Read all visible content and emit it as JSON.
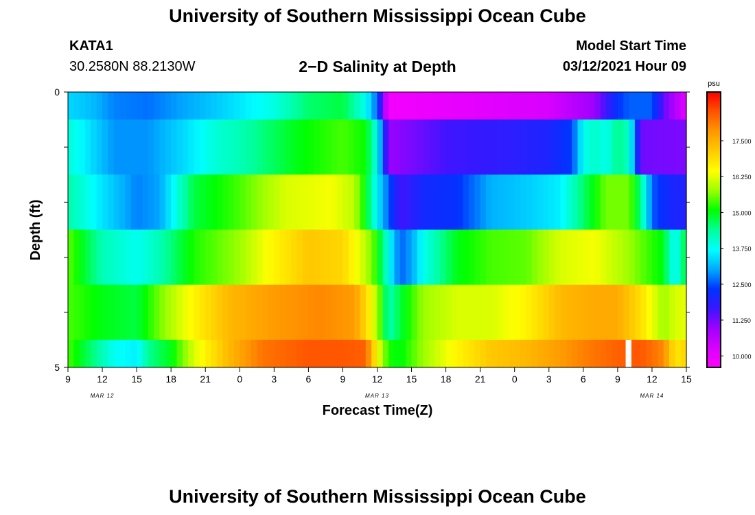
{
  "page": {
    "title_top": "University of Southern Mississippi Ocean Cube",
    "title_bottom": "University of Southern Mississippi Ocean Cube",
    "station_id": "KATA1",
    "station_coords": "30.2580N 88.2130W",
    "chart_title": "2−D Salinity at Depth",
    "model_start_label": "Model Start Time",
    "model_start_value": "03/12/2021 Hour 09"
  },
  "chart_data": {
    "type": "heatmap",
    "title": "2−D Salinity at Depth",
    "xlabel": "Forecast Time(Z)",
    "ylabel": "Depth (ft)",
    "x_start_hour_label": "9",
    "x_tick_labels": [
      "9",
      "12",
      "15",
      "18",
      "21",
      "0",
      "3",
      "6",
      "9",
      "12",
      "15",
      "18",
      "21",
      "0",
      "3",
      "6",
      "9",
      "12",
      "15"
    ],
    "x_hour_range": [
      9,
      63
    ],
    "date_labels": [
      {
        "label": "MAR 12",
        "hour": 12
      },
      {
        "label": "MAR 13",
        "hour": 36
      },
      {
        "label": "MAR 14",
        "hour": 60
      }
    ],
    "y_tick_labels": [
      "0",
      "5"
    ],
    "ylim": [
      0,
      5
    ],
    "depth_layers": [
      "0-0.5",
      "0.5-1.5",
      "1.5-2.5",
      "2.5-3.5",
      "3.5-4.5",
      "4.5-5"
    ],
    "colorbar": {
      "unit": "psu",
      "min": 9.6,
      "max": 19.2,
      "tick_labels": [
        "10.000",
        "11.250",
        "12.500",
        "13.750",
        "15.000",
        "16.250",
        "17.500"
      ],
      "colors": [
        "#ff00ff",
        "#d900ff",
        "#a000ff",
        "#3a16ff",
        "#0033ff",
        "#00aaff",
        "#00ffff",
        "#00ff99",
        "#00ff00",
        "#99ff00",
        "#ffff00",
        "#ffcc00",
        "#ff9900",
        "#ff5500",
        "#ff0000"
      ]
    },
    "missing_value": "gap",
    "rows": [
      {
        "layer": "0-0.5",
        "keys": [
          [
            9,
            13.4
          ],
          [
            11,
            13.2
          ],
          [
            13,
            12.8
          ],
          [
            16,
            12.7
          ],
          [
            19,
            13.0
          ],
          [
            22,
            13.3
          ],
          [
            27,
            13.9
          ],
          [
            30,
            14.6
          ],
          [
            33,
            14.8
          ],
          [
            35,
            13.8
          ],
          [
            36,
            12.6
          ],
          [
            37,
            9.8
          ],
          [
            45,
            10.1
          ],
          [
            51,
            10.3
          ],
          [
            55,
            11.0
          ],
          [
            57,
            12.3
          ],
          [
            58,
            12.6
          ],
          [
            60,
            12.6
          ],
          [
            61,
            11.4
          ],
          [
            63,
            10.1
          ]
        ]
      },
      {
        "layer": "0.5-1.5",
        "keys": [
          [
            9,
            14.0
          ],
          [
            13,
            12.9
          ],
          [
            16,
            12.9
          ],
          [
            19,
            13.4
          ],
          [
            22,
            14.0
          ],
          [
            24,
            14.2
          ],
          [
            29,
            15.0
          ],
          [
            33,
            15.4
          ],
          [
            35,
            15.1
          ],
          [
            36,
            13.8
          ],
          [
            37,
            11.0
          ],
          [
            42,
            11.6
          ],
          [
            47,
            11.8
          ],
          [
            51,
            12.0
          ],
          [
            53,
            12.4
          ],
          [
            54,
            13.8
          ],
          [
            55,
            14.1
          ],
          [
            56,
            13.8
          ],
          [
            57,
            14.5
          ],
          [
            58,
            14.1
          ],
          [
            59,
            11.3
          ],
          [
            63,
            11.2
          ]
        ]
      },
      {
        "layer": "1.5-2.5",
        "keys": [
          [
            9,
            14.3
          ],
          [
            12,
            13.5
          ],
          [
            15,
            12.8
          ],
          [
            17,
            13.0
          ],
          [
            20,
            14.8
          ],
          [
            24,
            15.4
          ],
          [
            28,
            16.2
          ],
          [
            32,
            16.4
          ],
          [
            34,
            16.0
          ],
          [
            35,
            15.0
          ],
          [
            36,
            13.6
          ],
          [
            37,
            12.6
          ],
          [
            38,
            11.6
          ],
          [
            40,
            12.1
          ],
          [
            43,
            12.3
          ],
          [
            46,
            13.1
          ],
          [
            49,
            13.3
          ],
          [
            52,
            13.6
          ],
          [
            54,
            14.6
          ],
          [
            56,
            15.6
          ],
          [
            58,
            15.6
          ],
          [
            59,
            14.5
          ],
          [
            60,
            12.6
          ],
          [
            61,
            12.2
          ],
          [
            63,
            11.9
          ]
        ]
      },
      {
        "layer": "2.5-3.5",
        "keys": [
          [
            9,
            15.5
          ],
          [
            12,
            14.2
          ],
          [
            15,
            13.8
          ],
          [
            17,
            14.2
          ],
          [
            20,
            15.2
          ],
          [
            24,
            15.8
          ],
          [
            27,
            16.6
          ],
          [
            30,
            17.2
          ],
          [
            33,
            17.0
          ],
          [
            35,
            16.0
          ],
          [
            36,
            15.2
          ],
          [
            37,
            13.8
          ],
          [
            38,
            12.6
          ],
          [
            39,
            13.0
          ],
          [
            40,
            13.8
          ],
          [
            41,
            14.2
          ],
          [
            43,
            15.0
          ],
          [
            46,
            15.4
          ],
          [
            49,
            15.5
          ],
          [
            52,
            16.2
          ],
          [
            55,
            16.4
          ],
          [
            58,
            15.8
          ],
          [
            61,
            15.0
          ],
          [
            62,
            13.6
          ],
          [
            63,
            15.0
          ]
        ]
      },
      {
        "layer": "3.5-4.5",
        "keys": [
          [
            9,
            15.4
          ],
          [
            12,
            15.0
          ],
          [
            15,
            14.8
          ],
          [
            17,
            15.6
          ],
          [
            20,
            16.6
          ],
          [
            23,
            17.4
          ],
          [
            27,
            17.8
          ],
          [
            31,
            18.0
          ],
          [
            34,
            17.8
          ],
          [
            35,
            17.0
          ],
          [
            36,
            15.9
          ],
          [
            37,
            14.2
          ],
          [
            38,
            14.8
          ],
          [
            40,
            15.8
          ],
          [
            43,
            16.2
          ],
          [
            46,
            16.2
          ],
          [
            49,
            16.6
          ],
          [
            52,
            17.4
          ],
          [
            55,
            17.6
          ],
          [
            57,
            17.6
          ],
          [
            59,
            16.9
          ],
          [
            61,
            15.8
          ],
          [
            62,
            16.2
          ],
          [
            63,
            16.3
          ]
        ]
      },
      {
        "layer": "4.5-5",
        "keys": [
          [
            9,
            15.4
          ],
          [
            11,
            14.6
          ],
          [
            13,
            13.8
          ],
          [
            15,
            13.6
          ],
          [
            16,
            14.4
          ],
          [
            18,
            15.0
          ],
          [
            20,
            16.2
          ],
          [
            23,
            17.4
          ],
          [
            26,
            18.2
          ],
          [
            30,
            18.5
          ],
          [
            33,
            18.5
          ],
          [
            35,
            18.4
          ],
          [
            36,
            16.5
          ],
          [
            37,
            15.2
          ],
          [
            38,
            15.0
          ],
          [
            40,
            15.8
          ],
          [
            43,
            16.6
          ],
          [
            46,
            17.2
          ],
          [
            49,
            17.4
          ],
          [
            52,
            17.8
          ],
          [
            55,
            18.2
          ],
          [
            57,
            18.4
          ],
          [
            59,
            18.5
          ],
          [
            61,
            18.0
          ],
          [
            62,
            16.8
          ],
          [
            63,
            17.0
          ]
        ]
      }
    ],
    "gaps": [
      {
        "layer": "4.5-5",
        "hour_from": 57.7,
        "hour_to": 58.2
      }
    ]
  }
}
